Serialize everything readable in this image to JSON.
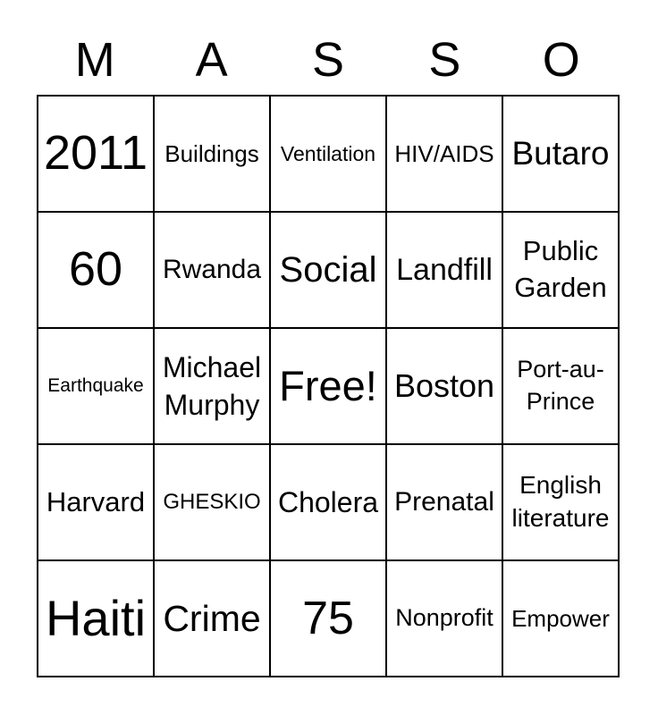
{
  "title": {
    "text": "MASSO",
    "letters": [
      "M",
      "A",
      "S",
      "S",
      "O"
    ]
  },
  "colors": {
    "text": "#000000",
    "grid_line": "#000000",
    "cell_background": "#ffffff",
    "page_background": "#ffffff"
  },
  "grid": {
    "rows": 5,
    "columns": 5,
    "free_space": "Free!",
    "cells": [
      {
        "label": "2011"
      },
      {
        "label": "Buildings"
      },
      {
        "label": "Ventilation"
      },
      {
        "label": "HIV/AIDS"
      },
      {
        "label": "Butaro"
      },
      {
        "label": "60"
      },
      {
        "label": "Rwanda"
      },
      {
        "label": "Social"
      },
      {
        "label": "Landfill"
      },
      {
        "label": "Public Garden"
      },
      {
        "label": "Earthquake"
      },
      {
        "label": "Michael Murphy"
      },
      {
        "label": "Free!"
      },
      {
        "label": "Boston"
      },
      {
        "label": "Port-au-Prince"
      },
      {
        "label": "Harvard"
      },
      {
        "label": "GHESKIO"
      },
      {
        "label": "Cholera"
      },
      {
        "label": "Prenatal"
      },
      {
        "label": "English literature"
      },
      {
        "label": "Haiti"
      },
      {
        "label": "Crime"
      },
      {
        "label": "75"
      },
      {
        "label": "Nonprofit"
      },
      {
        "label": "Empower"
      }
    ]
  }
}
